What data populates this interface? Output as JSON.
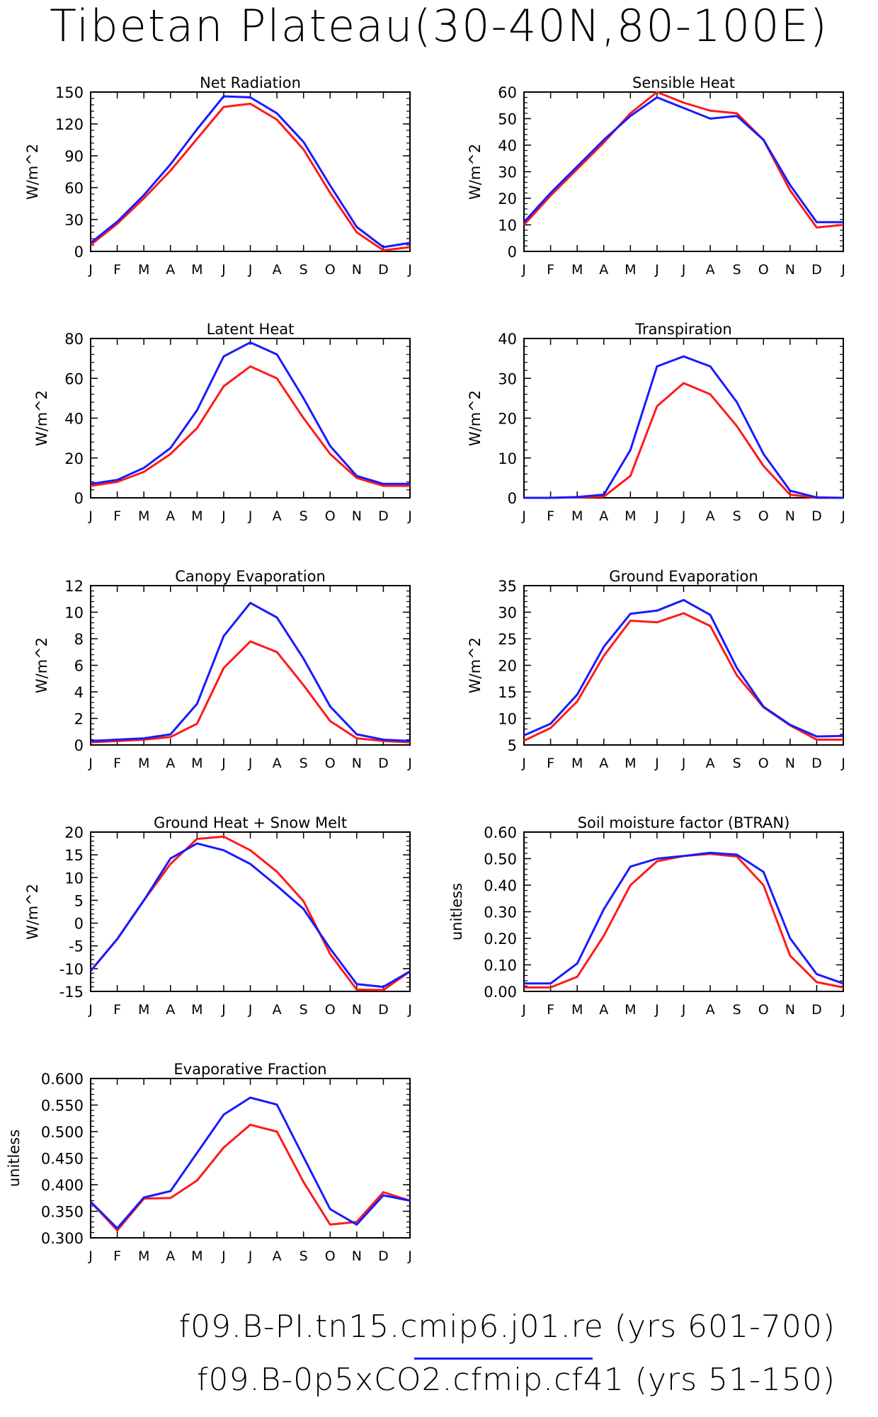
{
  "title": "Tibetan Plateau(30-40N,80-100E)",
  "month_labels": [
    "J",
    "F",
    "M",
    "A",
    "M",
    "J",
    "J",
    "A",
    "S",
    "O",
    "N",
    "D",
    "J"
  ],
  "colors": {
    "run1": "#1a1aff",
    "run2": "#ff1a1a"
  },
  "legend": [
    {
      "label": "f09.B-PI.tn15.cmip6.j01.re (yrs 601-700)",
      "color": "#1a1aff"
    },
    {
      "label": "f09.B-0p5xCO2.cfmip.cf41 (yrs 51-150)",
      "color": "#ff1a1a"
    }
  ],
  "chart_data": [
    {
      "type": "line",
      "title": "Net Radiation",
      "ylabel": "W/m^2",
      "ylim": [
        0,
        150
      ],
      "yticks": [
        0,
        30,
        60,
        90,
        120,
        150
      ],
      "ytick_labels": [
        "0",
        "30",
        "60",
        "90",
        "120",
        "150"
      ],
      "categories": [
        "J",
        "F",
        "M",
        "A",
        "M",
        "J",
        "J",
        "A",
        "S",
        "O",
        "N",
        "D",
        "J"
      ],
      "series": [
        {
          "values": [
            8,
            28,
            53,
            82,
            115,
            146,
            145,
            130,
            103,
            62,
            23,
            4,
            8
          ]
        },
        {
          "values": [
            6,
            26,
            50,
            76,
            106,
            136,
            139,
            124,
            96,
            55,
            18,
            1,
            4
          ]
        }
      ]
    },
    {
      "type": "line",
      "title": "Sensible Heat",
      "ylabel": "W/m^2",
      "ylim": [
        0,
        60
      ],
      "yticks": [
        0,
        10,
        20,
        30,
        40,
        50,
        60
      ],
      "ytick_labels": [
        "0",
        "10",
        "20",
        "30",
        "40",
        "50",
        "60"
      ],
      "categories": [
        "J",
        "F",
        "M",
        "A",
        "M",
        "J",
        "J",
        "A",
        "S",
        "O",
        "N",
        "D",
        "J"
      ],
      "series": [
        {
          "values": [
            11,
            22,
            32,
            42,
            51,
            58,
            54,
            50,
            51,
            42,
            25,
            11,
            11
          ]
        },
        {
          "values": [
            10,
            21,
            31,
            41,
            52,
            60,
            56,
            53,
            52,
            42,
            23,
            9,
            10
          ]
        }
      ]
    },
    {
      "type": "line",
      "title": "Latent Heat",
      "ylabel": "W/m^2",
      "ylim": [
        0,
        80
      ],
      "yticks": [
        0,
        20,
        40,
        60,
        80
      ],
      "ytick_labels": [
        "0",
        "20",
        "40",
        "60",
        "80"
      ],
      "categories": [
        "J",
        "F",
        "M",
        "A",
        "M",
        "J",
        "J",
        "A",
        "S",
        "O",
        "N",
        "D",
        "J"
      ],
      "series": [
        {
          "values": [
            7,
            9,
            15,
            25,
            44,
            71,
            78,
            72,
            50,
            26,
            11,
            7,
            7
          ]
        },
        {
          "values": [
            6,
            8,
            13,
            22,
            35,
            56,
            66,
            60,
            40,
            22,
            10,
            6,
            6
          ]
        }
      ]
    },
    {
      "type": "line",
      "title": "Transpiration",
      "ylabel": "W/m^2",
      "ylim": [
        0,
        40
      ],
      "yticks": [
        0,
        10,
        20,
        30,
        40
      ],
      "ytick_labels": [
        "0",
        "10",
        "20",
        "30",
        "40"
      ],
      "categories": [
        "J",
        "F",
        "M",
        "A",
        "M",
        "J",
        "J",
        "A",
        "S",
        "O",
        "N",
        "D",
        "J"
      ],
      "series": [
        {
          "values": [
            0,
            0,
            0.2,
            0.8,
            12,
            33,
            35.5,
            33,
            24,
            11,
            1.8,
            0.1,
            0
          ]
        },
        {
          "values": [
            0,
            0,
            0.1,
            0.3,
            5.5,
            23,
            28.8,
            26,
            18,
            8,
            0.8,
            0,
            0
          ]
        }
      ]
    },
    {
      "type": "line",
      "title": "Canopy Evaporation",
      "ylabel": "W/m^2",
      "ylim": [
        0,
        12
      ],
      "yticks": [
        0,
        2,
        4,
        6,
        8,
        10,
        12
      ],
      "ytick_labels": [
        "0",
        "2",
        "4",
        "6",
        "8",
        "10",
        "12"
      ],
      "categories": [
        "J",
        "F",
        "M",
        "A",
        "M",
        "J",
        "J",
        "A",
        "S",
        "O",
        "N",
        "D",
        "J"
      ],
      "series": [
        {
          "values": [
            0.3,
            0.4,
            0.5,
            0.8,
            3.1,
            8.2,
            10.7,
            9.6,
            6.5,
            2.9,
            0.8,
            0.4,
            0.3
          ]
        },
        {
          "values": [
            0.2,
            0.3,
            0.4,
            0.6,
            1.6,
            5.8,
            7.8,
            7.0,
            4.5,
            1.8,
            0.5,
            0.3,
            0.2
          ]
        }
      ]
    },
    {
      "type": "line",
      "title": "Ground Evaporation",
      "ylabel": "W/m^2",
      "ylim": [
        5,
        35
      ],
      "yticks": [
        5,
        10,
        15,
        20,
        25,
        30,
        35
      ],
      "ytick_labels": [
        "5",
        "10",
        "15",
        "20",
        "25",
        "30",
        "35"
      ],
      "categories": [
        "J",
        "F",
        "M",
        "A",
        "M",
        "J",
        "J",
        "A",
        "S",
        "O",
        "N",
        "D",
        "J"
      ],
      "series": [
        {
          "values": [
            6.8,
            9,
            14.5,
            23.5,
            29.7,
            30.3,
            32.3,
            29.5,
            19.5,
            12.2,
            8.8,
            6.6,
            6.7
          ]
        },
        {
          "values": [
            5.8,
            8.2,
            13.2,
            21.8,
            28.4,
            28.1,
            29.8,
            27.4,
            18.1,
            12.1,
            8.7,
            6,
            6
          ]
        }
      ]
    },
    {
      "type": "line",
      "title": "Ground Heat + Snow Melt",
      "ylabel": "W/m^2",
      "ylim": [
        -15,
        20
      ],
      "yticks": [
        -15,
        -10,
        -5,
        0,
        5,
        10,
        15,
        20
      ],
      "ytick_labels": [
        "-15",
        "-10",
        "-5",
        "0",
        "5",
        "10",
        "15",
        "20"
      ],
      "categories": [
        "J",
        "F",
        "M",
        "A",
        "M",
        "J",
        "J",
        "A",
        "S",
        "O",
        "N",
        "D",
        "J"
      ],
      "series": [
        {
          "values": [
            -10.5,
            -3.5,
            5,
            14.2,
            17.5,
            16,
            13,
            8.2,
            3.1,
            -5.6,
            -13.4,
            -14,
            -10.6
          ]
        },
        {
          "values": [
            -10.5,
            -3.5,
            5,
            13,
            18.5,
            19,
            16,
            11.3,
            4.8,
            -6.8,
            -14.6,
            -14.7,
            -10.6
          ]
        }
      ]
    },
    {
      "type": "line",
      "title": "Soil moisture factor (BTRAN)",
      "ylabel": "unitless",
      "ylim": [
        0,
        0.6
      ],
      "yticks": [
        0,
        0.1,
        0.2,
        0.3,
        0.4,
        0.5,
        0.6
      ],
      "ytick_labels": [
        "0.00",
        "0.10",
        "0.20",
        "0.30",
        "0.40",
        "0.50",
        "0.60"
      ],
      "categories": [
        "J",
        "F",
        "M",
        "A",
        "M",
        "J",
        "J",
        "A",
        "S",
        "O",
        "N",
        "D",
        "J"
      ],
      "series": [
        {
          "values": [
            0.03,
            0.03,
            0.105,
            0.31,
            0.47,
            0.5,
            0.51,
            0.522,
            0.515,
            0.45,
            0.2,
            0.065,
            0.03
          ]
        },
        {
          "values": [
            0.015,
            0.015,
            0.055,
            0.21,
            0.4,
            0.49,
            0.51,
            0.518,
            0.508,
            0.4,
            0.135,
            0.035,
            0.015
          ]
        }
      ]
    },
    {
      "type": "line",
      "title": "Evaporative Fraction",
      "ylabel": "unitless",
      "ylim": [
        0.3,
        0.6
      ],
      "yticks": [
        0.3,
        0.35,
        0.4,
        0.45,
        0.5,
        0.55,
        0.6
      ],
      "ytick_labels": [
        "0.300",
        "0.350",
        "0.400",
        "0.450",
        "0.500",
        "0.550",
        "0.600"
      ],
      "categories": [
        "J",
        "F",
        "M",
        "A",
        "M",
        "J",
        "J",
        "A",
        "S",
        "O",
        "N",
        "D",
        "J"
      ],
      "series": [
        {
          "values": [
            0.368,
            0.318,
            0.376,
            0.388,
            0.46,
            0.532,
            0.564,
            0.551,
            0.452,
            0.354,
            0.325,
            0.38,
            0.37
          ]
        },
        {
          "values": [
            0.368,
            0.314,
            0.374,
            0.375,
            0.408,
            0.47,
            0.513,
            0.5,
            0.405,
            0.325,
            0.33,
            0.386,
            0.37
          ]
        }
      ]
    }
  ]
}
